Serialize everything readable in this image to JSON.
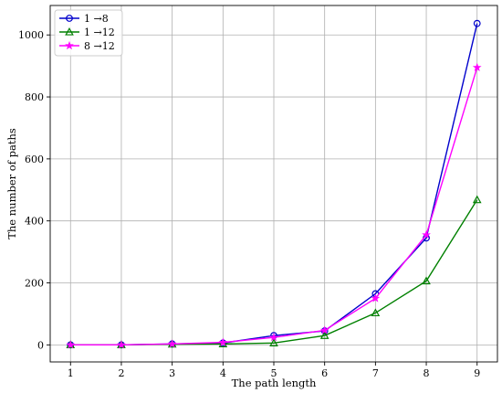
{
  "chart_data": {
    "type": "line",
    "title": "",
    "xlabel": "The path length",
    "ylabel": "The number of paths",
    "x": [
      1,
      2,
      3,
      4,
      5,
      6,
      7,
      8,
      9
    ],
    "xlim": [
      0.6,
      9.4
    ],
    "ylim": [
      -55,
      1095
    ],
    "yticks": [
      0,
      200,
      400,
      600,
      800,
      1000
    ],
    "grid": true,
    "legend_position": "upper-left",
    "series": [
      {
        "name": "1 →8",
        "color": "#0000cc",
        "marker": "circle",
        "values": [
          0,
          0,
          3,
          6,
          30,
          45,
          165,
          345,
          1037
        ]
      },
      {
        "name": "1 →12",
        "color": "#008000",
        "marker": "triangle",
        "values": [
          0,
          0,
          2,
          3,
          6,
          30,
          103,
          206,
          468
        ]
      },
      {
        "name": "8 →12",
        "color": "#ff00ff",
        "marker": "star",
        "values": [
          0,
          0,
          3,
          8,
          24,
          47,
          150,
          355,
          895
        ]
      }
    ]
  }
}
